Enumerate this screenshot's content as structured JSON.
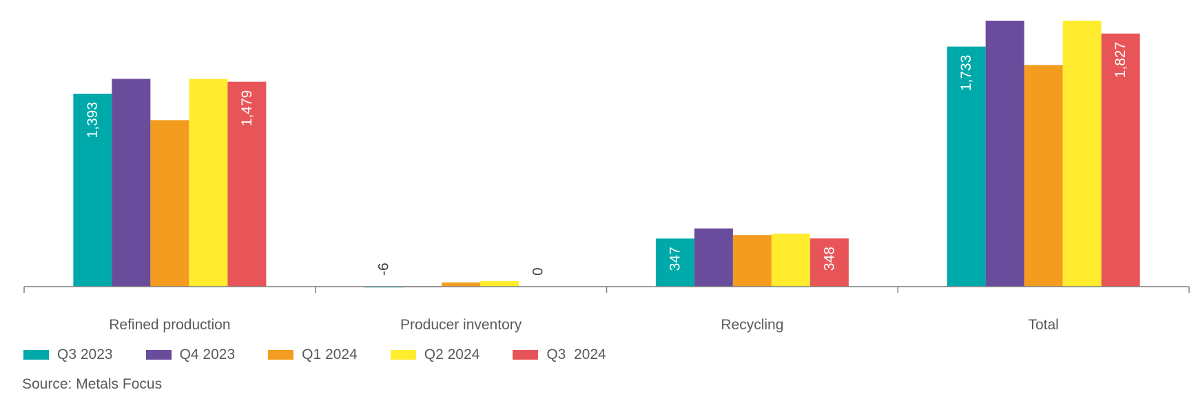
{
  "chart_data": {
    "type": "bar",
    "categories": [
      "Refined production",
      "Producer inventory",
      "Recycling",
      "Total"
    ],
    "series": [
      {
        "name": "Q3 2023",
        "color": "#00A9A9",
        "values": [
          1393,
          -6,
          347,
          1733
        ]
      },
      {
        "name": "Q4 2023",
        "color": "#6A4C9C",
        "values": [
          1500,
          -5,
          420,
          1920
        ]
      },
      {
        "name": "Q1 2024",
        "color": "#F39C1F",
        "values": [
          1202,
          30,
          372,
          1600
        ]
      },
      {
        "name": "Q2 2024",
        "color": "#FFEC2E",
        "values": [
          1500,
          40,
          382,
          1920
        ]
      },
      {
        "name": "Q3  2024",
        "color": "#E85558",
        "values": [
          1479,
          0,
          348,
          1827
        ]
      }
    ],
    "data_labels": [
      {
        "series": 0,
        "category": 0,
        "text": "1,393"
      },
      {
        "series": 4,
        "category": 0,
        "text": "1,479"
      },
      {
        "series": 0,
        "category": 1,
        "text": "-6"
      },
      {
        "series": 4,
        "category": 1,
        "text": "0"
      },
      {
        "series": 0,
        "category": 2,
        "text": "347"
      },
      {
        "series": 4,
        "category": 2,
        "text": "348"
      },
      {
        "series": 0,
        "category": 3,
        "text": "1,733"
      },
      {
        "series": 4,
        "category": 3,
        "text": "1,827"
      }
    ],
    "ylim": [
      -20,
      1950
    ],
    "grid": false,
    "legend_position": "bottom-left"
  },
  "source": "Source: Metals Focus"
}
